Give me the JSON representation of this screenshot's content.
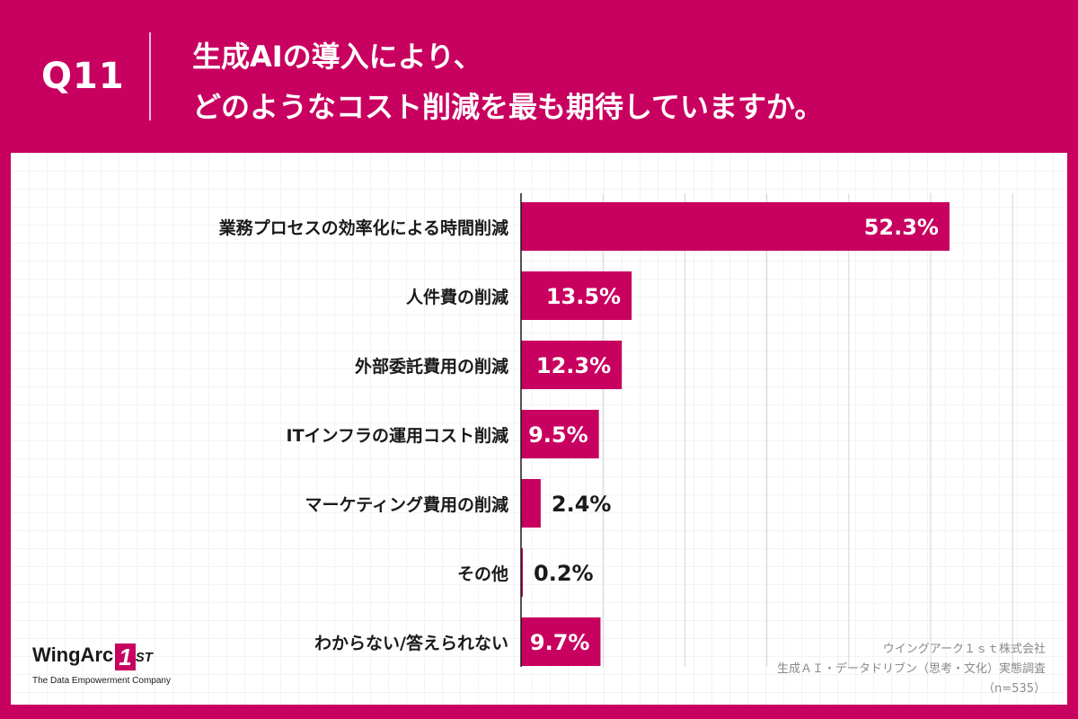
{
  "header": {
    "question_number": "Q11",
    "title_line1": "生成AIの導入により、",
    "title_line2": "どのようなコスト削減を最も期待していますか。"
  },
  "chart_data": {
    "type": "bar",
    "orientation": "horizontal",
    "categories": [
      "業務プロセスの効率化による時間削減",
      "人件費の削減",
      "外部委託費用の削減",
      "ITインフラの運用コスト削減",
      "マーケティング費用の削減",
      "その他",
      "わからない/答えられない"
    ],
    "values": [
      52.3,
      13.5,
      12.3,
      9.5,
      2.4,
      0.2,
      9.7
    ],
    "value_labels": [
      "52.3%",
      "13.5%",
      "12.3%",
      "9.5%",
      "2.4%",
      "0.2%",
      "9.7%"
    ],
    "unit": "%",
    "xlim": [
      0,
      60
    ],
    "grid": true,
    "bar_color": "#c8005f"
  },
  "footer": {
    "logo_word": "WingArc",
    "logo_mark": "1",
    "logo_suffix": "ST",
    "logo_tagline": "The Data Empowerment Company",
    "source_line1": "ウイングアーク１ｓｔ株式会社",
    "source_line2": "生成ＡＩ・データドリブン（思考・文化）実態調査",
    "source_line3": "（n=535）"
  },
  "colors": {
    "brand": "#c8005f",
    "text": "#1a1a1a",
    "muted": "#8a8a8a"
  }
}
